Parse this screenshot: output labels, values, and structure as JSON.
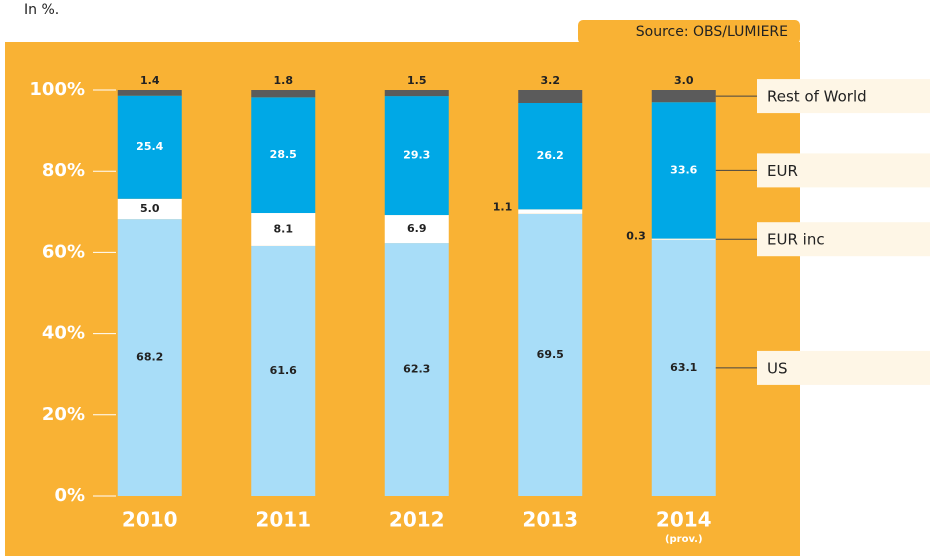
{
  "chart_data": {
    "type": "stacked_bar",
    "subtitle": "In %.",
    "source": "Source: OBS/LUMIERE",
    "categories": [
      "2010",
      "2011",
      "2012",
      "2013",
      "2014"
    ],
    "annotation": "(prov.)",
    "series": [
      {
        "name": "US",
        "color": "#a8ddf8",
        "values": [
          68.2,
          61.6,
          62.3,
          69.5,
          63.1
        ],
        "value_labels": [
          "68.2",
          "61.6",
          "62.3",
          "69.5",
          "63.1"
        ]
      },
      {
        "name": "EUR inc",
        "color": "#ffffff",
        "values": [
          5.0,
          8.1,
          6.9,
          1.1,
          0.3
        ],
        "value_labels": [
          "5.0",
          "8.1",
          "6.9",
          "1.1",
          "0.3"
        ]
      },
      {
        "name": "EUR",
        "color": "#00a8e6",
        "values": [
          25.4,
          28.5,
          29.3,
          26.2,
          33.6
        ],
        "value_labels": [
          "25.4",
          "28.5",
          "29.3",
          "26.2",
          "33.6"
        ]
      },
      {
        "name": "Rest of World",
        "color": "#5b5b5b",
        "values": [
          1.4,
          1.8,
          1.5,
          3.2,
          3.0
        ],
        "value_labels": [
          "1.4",
          "1.8",
          "1.5",
          "3.2",
          "3.0"
        ]
      }
    ],
    "ylim": [
      0,
      100
    ],
    "yticks": [
      {
        "value": 0,
        "label": "0%"
      },
      {
        "value": 20,
        "label": "20%"
      },
      {
        "value": 40,
        "label": "40%"
      },
      {
        "value": 60,
        "label": "60%"
      },
      {
        "value": 80,
        "label": "80%"
      },
      {
        "value": 100,
        "label": "100%"
      }
    ]
  }
}
